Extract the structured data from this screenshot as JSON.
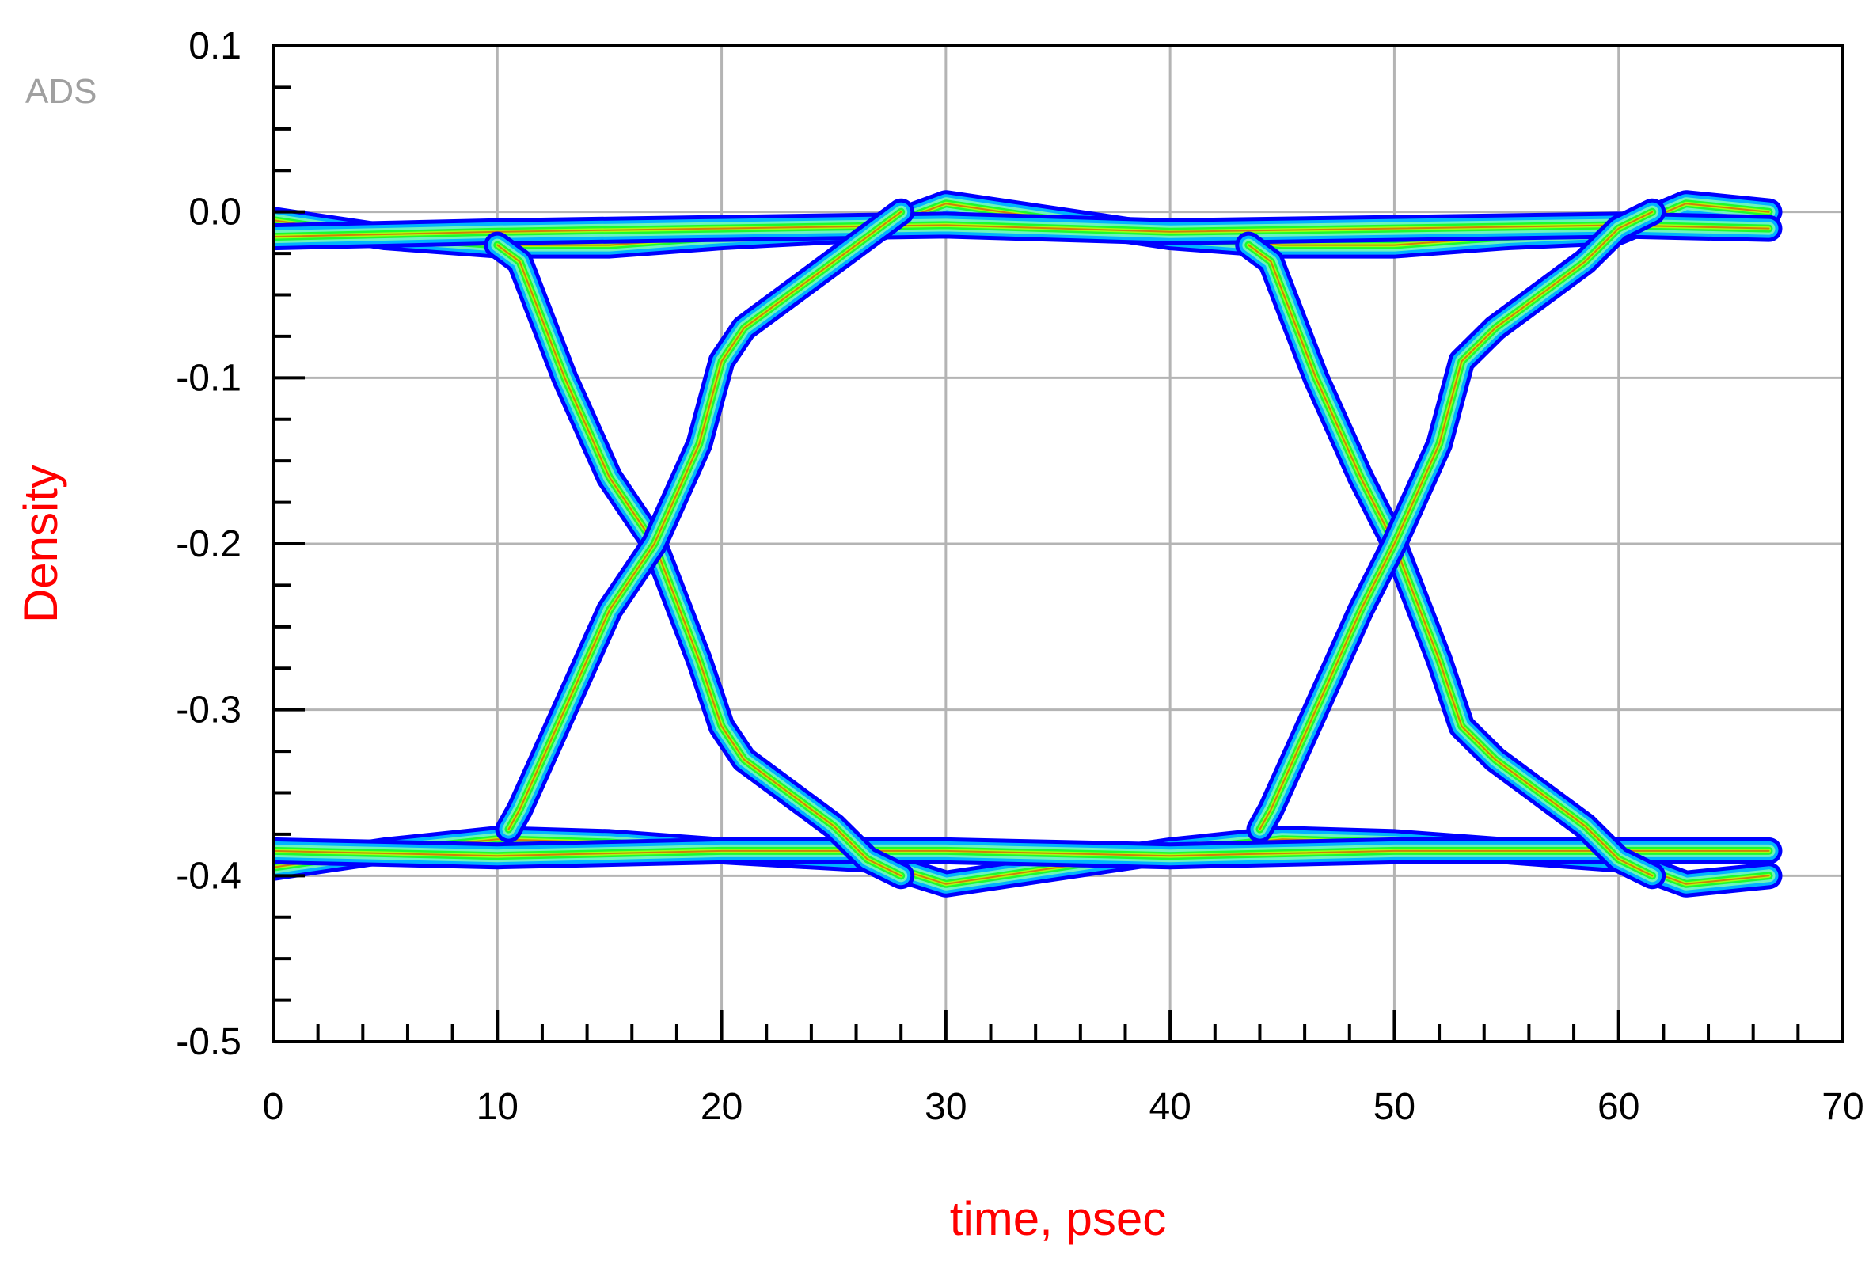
{
  "watermark": "ADS",
  "chart_data": {
    "type": "line",
    "title": "",
    "xlabel": "time, psec",
    "ylabel": "Density",
    "label_color": "#ff0000",
    "xlim": [
      0,
      70
    ],
    "ylim": [
      -0.5,
      0.1
    ],
    "grid": true,
    "x_ticks": [
      {
        "value": 0,
        "label": "0"
      },
      {
        "value": 10,
        "label": "10"
      },
      {
        "value": 20,
        "label": "20"
      },
      {
        "value": 30,
        "label": "30"
      },
      {
        "value": 40,
        "label": "40"
      },
      {
        "value": 50,
        "label": "50"
      },
      {
        "value": 60,
        "label": "60"
      },
      {
        "value": 70,
        "label": "70"
      }
    ],
    "y_ticks": [
      {
        "value": 0.1,
        "label": "0.1"
      },
      {
        "value": 0.0,
        "label": "0.0"
      },
      {
        "value": -0.1,
        "label": "-0.1"
      },
      {
        "value": -0.2,
        "label": "-0.2"
      },
      {
        "value": -0.3,
        "label": "-0.3"
      },
      {
        "value": -0.4,
        "label": "-0.4"
      },
      {
        "value": -0.5,
        "label": "-0.5"
      }
    ],
    "density_colors": [
      "#0000ff",
      "#00c8ff",
      "#80ffb0",
      "#00ff00",
      "#ffff00",
      "#ff0000"
    ],
    "series": [
      {
        "values": [
          [
            0,
            -0.005
          ],
          [
            5,
            -0.015
          ],
          [
            10,
            -0.02
          ],
          [
            15,
            -0.02
          ],
          [
            20,
            -0.015
          ],
          [
            27,
            -0.01
          ],
          [
            30,
            0.005
          ],
          [
            35,
            -0.005
          ],
          [
            40,
            -0.015
          ],
          [
            45,
            -0.02
          ],
          [
            50,
            -0.02
          ],
          [
            55,
            -0.015
          ],
          [
            60,
            -0.012
          ],
          [
            63,
            0.005
          ],
          [
            66.7,
            0.0
          ]
        ]
      },
      {
        "values": [
          [
            0,
            -0.015
          ],
          [
            10,
            -0.012
          ],
          [
            20,
            -0.01
          ],
          [
            30,
            -0.008
          ],
          [
            40,
            -0.012
          ],
          [
            50,
            -0.01
          ],
          [
            60,
            -0.008
          ],
          [
            66.7,
            -0.01
          ]
        ]
      },
      {
        "values": [
          [
            0,
            -0.395
          ],
          [
            5,
            -0.385
          ],
          [
            10,
            -0.378
          ],
          [
            15,
            -0.38
          ],
          [
            20,
            -0.385
          ],
          [
            26.5,
            -0.39
          ],
          [
            30,
            -0.405
          ],
          [
            35,
            -0.395
          ],
          [
            40,
            -0.385
          ],
          [
            45,
            -0.378
          ],
          [
            50,
            -0.38
          ],
          [
            55,
            -0.385
          ],
          [
            60,
            -0.39
          ],
          [
            63,
            -0.405
          ],
          [
            66.7,
            -0.4
          ]
        ]
      },
      {
        "values": [
          [
            0,
            -0.385
          ],
          [
            10,
            -0.388
          ],
          [
            20,
            -0.385
          ],
          [
            30,
            -0.385
          ],
          [
            40,
            -0.388
          ],
          [
            50,
            -0.385
          ],
          [
            60,
            -0.385
          ],
          [
            66.7,
            -0.385
          ]
        ]
      },
      {
        "values": [
          [
            10,
            -0.02
          ],
          [
            11,
            -0.03
          ],
          [
            13,
            -0.1
          ],
          [
            15,
            -0.16
          ],
          [
            17,
            -0.2
          ],
          [
            19,
            -0.27
          ],
          [
            20,
            -0.31
          ],
          [
            21,
            -0.33
          ],
          [
            23,
            -0.35
          ],
          [
            25,
            -0.37
          ],
          [
            26.5,
            -0.39
          ],
          [
            28,
            -0.4
          ]
        ]
      },
      {
        "values": [
          [
            10.5,
            -0.372
          ],
          [
            11,
            -0.36
          ],
          [
            13,
            -0.3
          ],
          [
            15,
            -0.24
          ],
          [
            17,
            -0.2
          ],
          [
            19,
            -0.14
          ],
          [
            20,
            -0.09
          ],
          [
            21,
            -0.07
          ],
          [
            23,
            -0.05
          ],
          [
            25,
            -0.03
          ],
          [
            27,
            -0.01
          ],
          [
            28,
            0.0
          ]
        ]
      },
      {
        "values": [
          [
            43.5,
            -0.02
          ],
          [
            44.5,
            -0.03
          ],
          [
            46.5,
            -0.1
          ],
          [
            48.5,
            -0.16
          ],
          [
            50,
            -0.2
          ],
          [
            52,
            -0.27
          ],
          [
            53,
            -0.31
          ],
          [
            54.5,
            -0.33
          ],
          [
            56.5,
            -0.35
          ],
          [
            58.5,
            -0.37
          ],
          [
            60,
            -0.39
          ],
          [
            61.5,
            -0.4
          ]
        ]
      },
      {
        "values": [
          [
            44,
            -0.372
          ],
          [
            44.5,
            -0.36
          ],
          [
            46.5,
            -0.3
          ],
          [
            48.5,
            -0.24
          ],
          [
            50,
            -0.2
          ],
          [
            52,
            -0.14
          ],
          [
            53,
            -0.09
          ],
          [
            54.5,
            -0.07
          ],
          [
            56.5,
            -0.05
          ],
          [
            58.5,
            -0.03
          ],
          [
            60,
            -0.01
          ],
          [
            61.5,
            0.0
          ]
        ]
      }
    ]
  }
}
